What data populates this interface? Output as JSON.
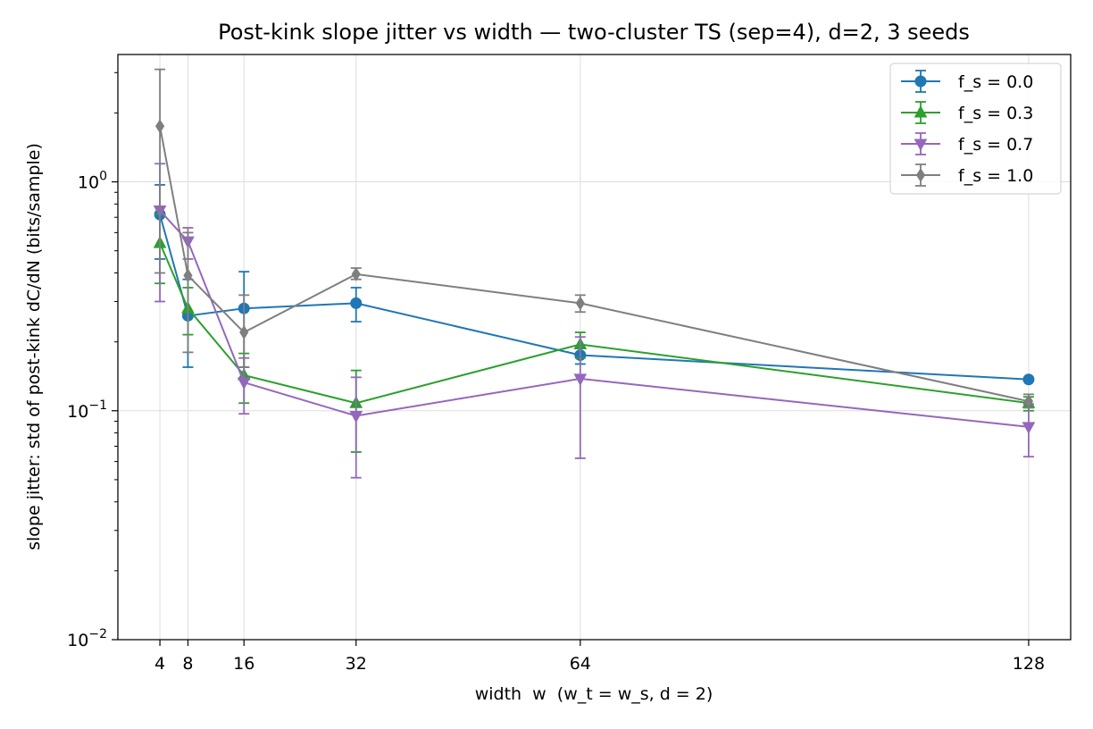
{
  "chart_data": {
    "type": "line",
    "title": "Post-kink slope jitter vs width — two-cluster TS (sep=4), d=2, 3 seeds",
    "xlabel": "width  w  (w_t = w_s, d = 2)",
    "ylabel": "slope jitter: std of post-kink dC/dN (bits/sample)",
    "xscale": "linear",
    "yscale": "log",
    "xlim": [
      -2,
      134
    ],
    "ylim": [
      0.01,
      3.6
    ],
    "x_ticks": [
      {
        "value": 4,
        "label": "4"
      },
      {
        "value": 8,
        "label": "8"
      },
      {
        "value": 16,
        "label": "16"
      },
      {
        "value": 32,
        "label": "32"
      },
      {
        "value": 64,
        "label": "64"
      },
      {
        "value": 128,
        "label": "128"
      }
    ],
    "y_ticks": [
      {
        "value": 0.01,
        "base": "10",
        "exp": "−2"
      },
      {
        "value": 0.1,
        "base": "10",
        "exp": "−1"
      },
      {
        "value": 1,
        "base": "10",
        "exp": "0"
      }
    ],
    "grid": true,
    "legend_position": "top-right",
    "series": [
      {
        "name": "f_s = 0.0",
        "color": "#1f77b4",
        "marker": "circle",
        "x": [
          4,
          8,
          16,
          32,
          64,
          128
        ],
        "y": [
          0.72,
          0.26,
          0.28,
          0.295,
          0.175,
          0.137
        ],
        "err_low": [
          0.46,
          0.155,
          0.155,
          0.245,
          0.16,
          0.137
        ],
        "err_high": [
          0.97,
          0.375,
          0.405,
          0.345,
          0.19,
          0.137
        ]
      },
      {
        "name": "f_s = 0.3",
        "color": "#2ca02c",
        "marker": "triangle-up",
        "x": [
          4,
          8,
          16,
          32,
          64,
          128
        ],
        "y": [
          0.54,
          0.28,
          0.143,
          0.108,
          0.195,
          0.108
        ],
        "err_low": [
          0.36,
          0.215,
          0.108,
          0.066,
          0.17,
          0.1
        ],
        "err_high": [
          0.72,
          0.345,
          0.178,
          0.15,
          0.22,
          0.115
        ]
      },
      {
        "name": "f_s = 0.7",
        "color": "#9467bd",
        "marker": "triangle-down",
        "x": [
          4,
          8,
          16,
          32,
          64,
          128
        ],
        "y": [
          0.75,
          0.55,
          0.133,
          0.095,
          0.138,
          0.085
        ],
        "err_low": [
          0.3,
          0.46,
          0.097,
          0.051,
          0.062,
          0.063
        ],
        "err_high": [
          1.2,
          0.63,
          0.17,
          0.14,
          0.21,
          0.107
        ]
      },
      {
        "name": "f_s = 1.0",
        "color": "#7f7f7f",
        "marker": "diamond",
        "x": [
          4,
          8,
          16,
          32,
          64,
          128
        ],
        "y": [
          1.75,
          0.39,
          0.22,
          0.395,
          0.295,
          0.11
        ],
        "err_low": [
          0.4,
          0.18,
          0.155,
          0.375,
          0.27,
          0.103
        ],
        "err_high": [
          3.1,
          0.6,
          0.32,
          0.42,
          0.32,
          0.118
        ]
      }
    ]
  }
}
